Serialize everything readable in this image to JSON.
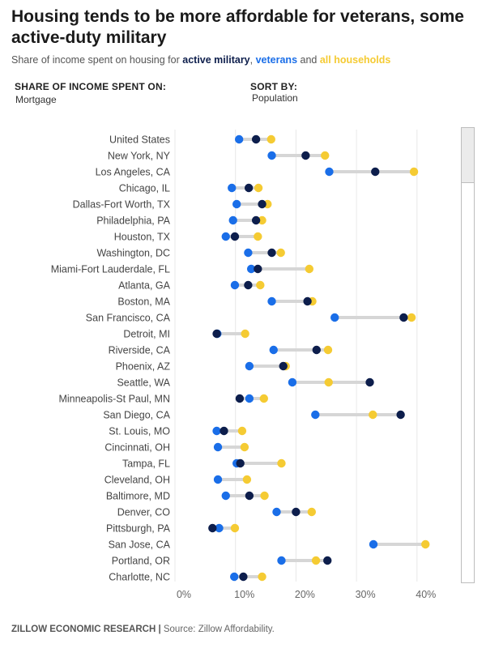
{
  "title": "Housing tends to be more affordable for veterans, some active-duty military",
  "subtitle": {
    "prefix": "Share of income spent on housing for ",
    "s1": "active military",
    "sep1": ", ",
    "s2": "veterans",
    "sep2": " and ",
    "s3": "all households"
  },
  "controls": {
    "share_label": "SHARE OF INCOME SPENT ON:",
    "share_value": "Mortgage",
    "sort_label": "SORT BY:",
    "sort_value": "Population"
  },
  "footer": {
    "brand": "ZILLOW ECONOMIC RESEARCH |",
    "source": " Source: Zillow Affordability."
  },
  "colors": {
    "active_military": "#0d1e4c",
    "veterans": "#1a6ee8",
    "all_households": "#f5cb33",
    "range_line": "#d6d6d6",
    "grid": "#e8e8e8"
  },
  "chart_data": {
    "type": "dot-range",
    "xlabel": "",
    "ylabel": "",
    "xlim": [
      0,
      45
    ],
    "xticks": [
      0,
      10,
      20,
      30,
      40
    ],
    "xtick_labels": [
      "0%",
      "10%",
      "20%",
      "30%",
      "40%"
    ],
    "grid": true,
    "categories": [
      "United States",
      "New York, NY",
      "Los Angeles, CA",
      "Chicago, IL",
      "Dallas-Fort Worth, TX",
      "Philadelphia, PA",
      "Houston, TX",
      "Washington, DC",
      "Miami-Fort Lauderdale, FL",
      "Atlanta, GA",
      "Boston, MA",
      "San Francisco, CA",
      "Detroit, MI",
      "Riverside, CA",
      "Phoenix, AZ",
      "Seattle, WA",
      "Minneapolis-St Paul, MN",
      "San Diego, CA",
      "St. Louis, MO",
      "Cincinnati, OH",
      "Tampa, FL",
      "Cleveland, OH",
      "Baltimore, MD",
      "Denver, CO",
      "Pittsburgh, PA",
      "San Jose, CA",
      "Portland, OR",
      "Charlotte, NC"
    ],
    "series": [
      {
        "name": "active military",
        "values": [
          13.4,
          21.6,
          33.1,
          12.2,
          14.4,
          13.4,
          9.9,
          16.0,
          13.7,
          12.1,
          21.9,
          37.8,
          6.9,
          23.4,
          17.9,
          32.2,
          10.7,
          37.3,
          8.1,
          null,
          10.8,
          null,
          12.3,
          20.0,
          6.2,
          null,
          25.2,
          11.3
        ]
      },
      {
        "name": "veterans",
        "values": [
          10.6,
          16.0,
          25.5,
          9.4,
          10.2,
          9.6,
          8.4,
          12.1,
          12.6,
          9.9,
          16.0,
          26.4,
          7.0,
          16.3,
          12.3,
          19.4,
          12.3,
          23.2,
          6.9,
          7.1,
          10.2,
          7.1,
          8.4,
          16.8,
          7.3,
          32.8,
          17.6,
          9.8
        ]
      },
      {
        "name": "all households",
        "values": [
          15.9,
          24.8,
          39.5,
          13.8,
          15.3,
          14.4,
          13.7,
          17.5,
          22.2,
          14.1,
          22.7,
          39.1,
          11.6,
          25.3,
          18.3,
          25.4,
          14.7,
          32.7,
          11.1,
          11.5,
          17.6,
          11.9,
          14.8,
          22.6,
          9.9,
          41.4,
          23.3,
          14.4
        ]
      }
    ]
  }
}
